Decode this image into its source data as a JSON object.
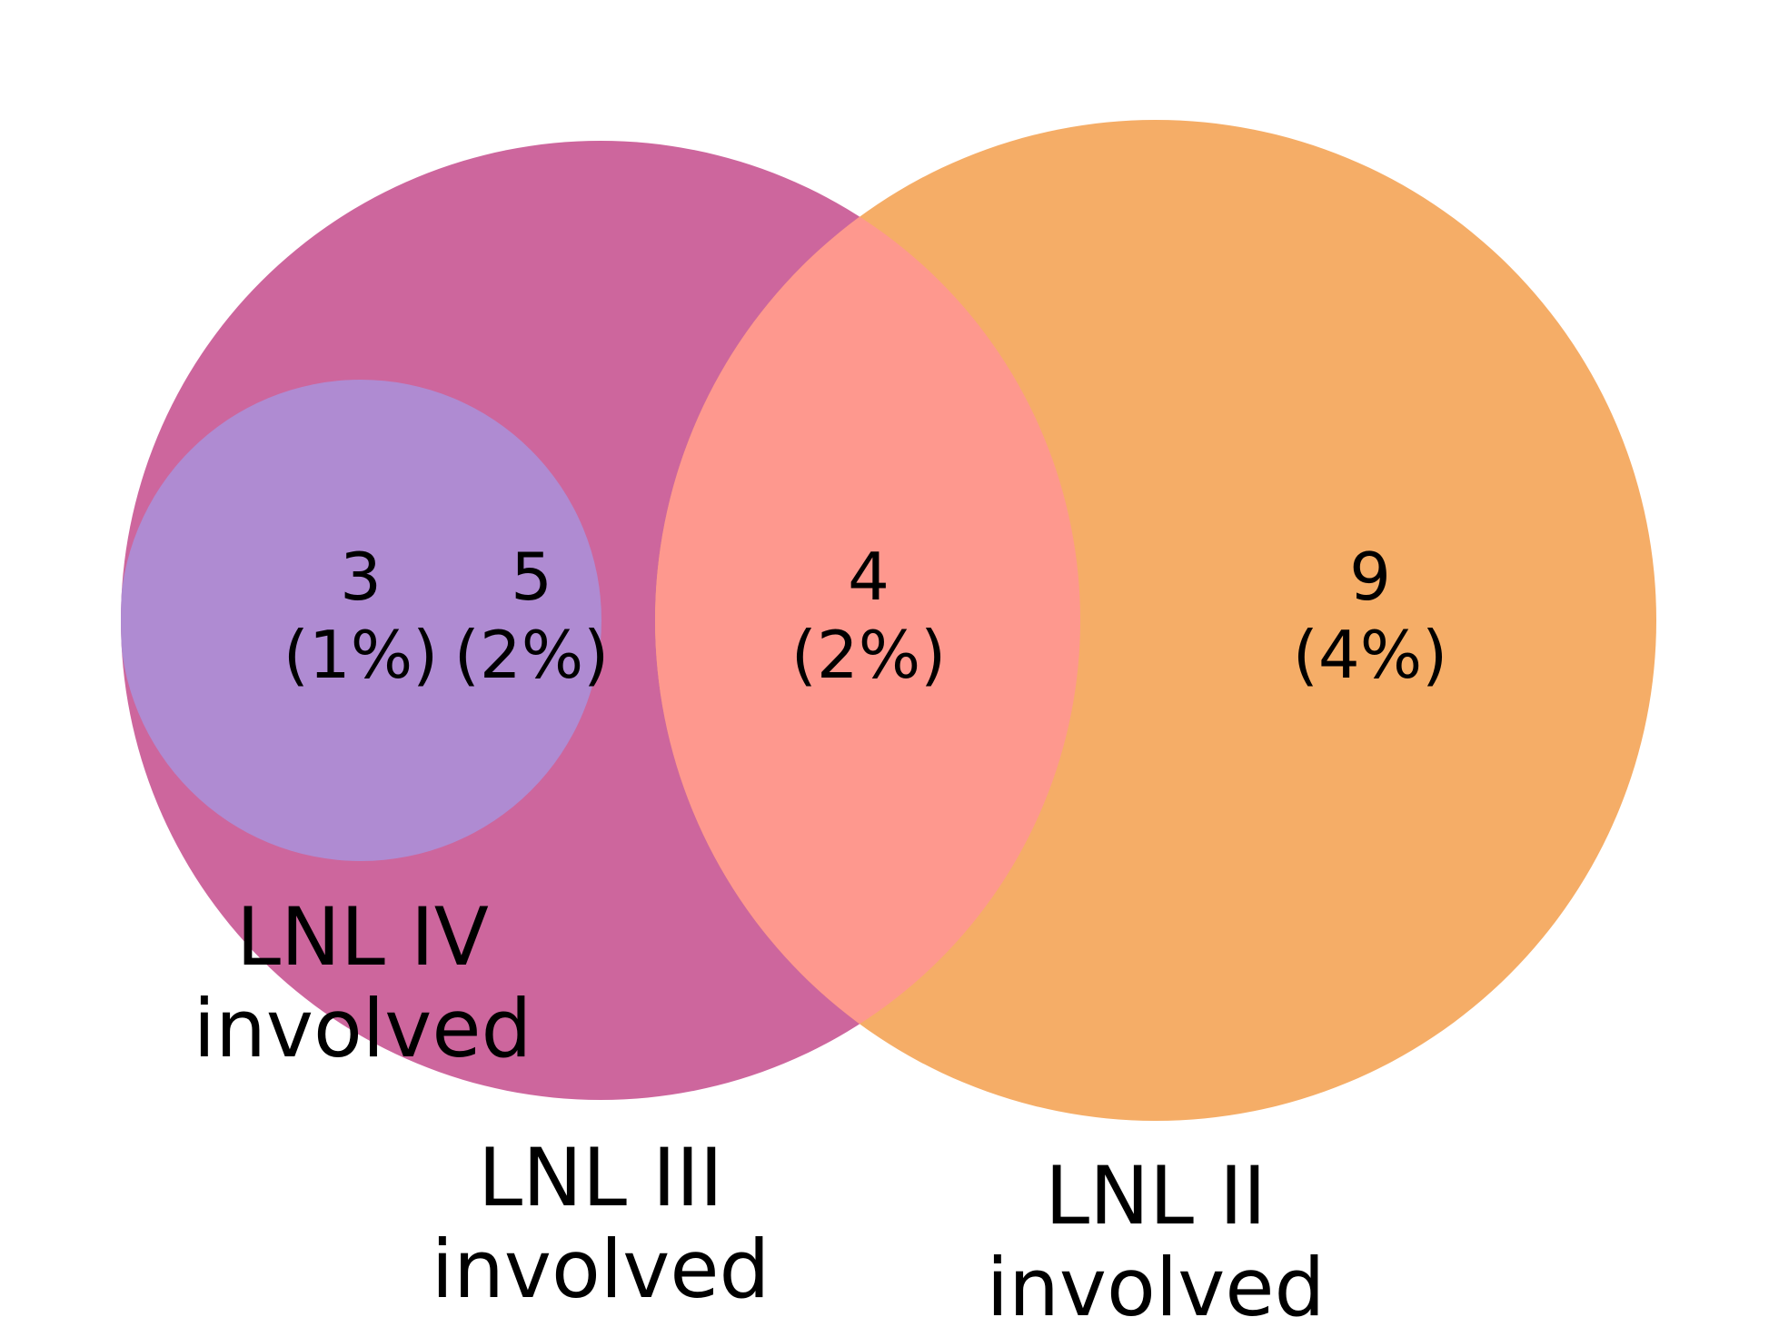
{
  "colors": {
    "lnl_iii_only": "#cd669d",
    "lnl_iv": "#af8bd2",
    "lnl_ii_only": "#f5ad67",
    "lnl_ii_and_iii": "#fe988e",
    "text": "#000000",
    "background": "#ffffff"
  },
  "sets": {
    "lnl_iv": {
      "label_line1": "LNL IV",
      "label_line2": "involved"
    },
    "lnl_iii": {
      "label_line1": "LNL III",
      "label_line2": "involved"
    },
    "lnl_ii": {
      "label_line1": "LNL II",
      "label_line2": "involved"
    }
  },
  "regions": {
    "lnl_iv_and_iii": {
      "count": "3",
      "percent": "(1%)"
    },
    "lnl_iii_only": {
      "count": "5",
      "percent": "(2%)"
    },
    "lnl_ii_and_iii": {
      "count": "4",
      "percent": "(2%)"
    },
    "lnl_ii_only": {
      "count": "9",
      "percent": "(4%)"
    }
  }
}
